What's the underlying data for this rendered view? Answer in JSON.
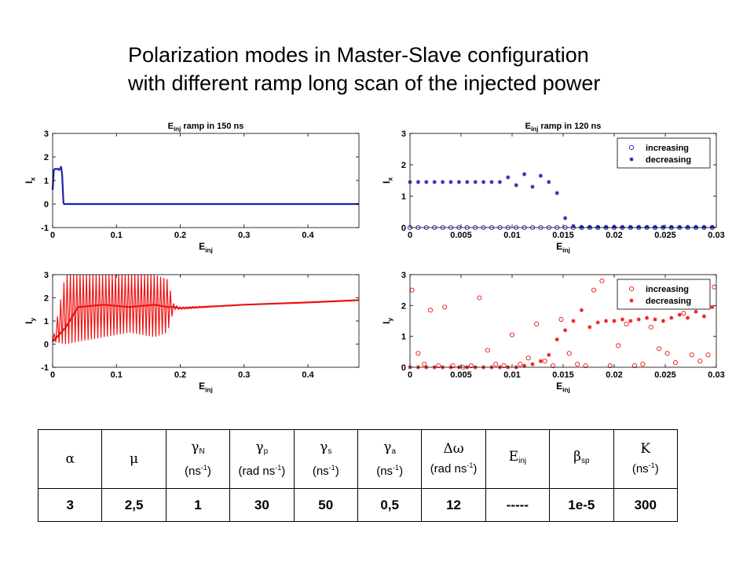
{
  "title_lines": [
    "Polarization modes in Master-Slave configuration",
    "with different ramp long scan of the injected power"
  ],
  "colors": {
    "blue": "#1f1fb4",
    "red": "#ee1111"
  },
  "chart_data": [
    {
      "type": "line",
      "title": "E_inj ramp in 150 ns",
      "xlabel": "E_inj",
      "ylabel": "I_x",
      "xlim": [
        0,
        0.48
      ],
      "ylim": [
        -1,
        3
      ],
      "xticks": [
        0,
        0.1,
        0.2,
        0.3,
        0.4
      ],
      "xtick_labels": [
        "0",
        "0.1",
        "0.2",
        "0.3",
        "0.4"
      ],
      "yticks": [
        -1,
        0,
        1,
        2,
        3
      ],
      "ytick_labels": [
        "-1",
        "0",
        "1",
        "2",
        "3"
      ],
      "series": [
        {
          "color": "#1f1fb4",
          "x": [
            0,
            0.002,
            0.004,
            0.006,
            0.008,
            0.01,
            0.012,
            0.013,
            0.014,
            0.015,
            0.016,
            0.017,
            0.018,
            0.1,
            0.2,
            0.3,
            0.4,
            0.48
          ],
          "y": [
            0.6,
            1.45,
            1.5,
            1.48,
            1.5,
            1.45,
            1.5,
            1.6,
            1.45,
            1.2,
            0.6,
            0.05,
            0,
            0,
            0,
            0,
            0,
            0
          ]
        }
      ]
    },
    {
      "type": "scatter",
      "title": "E_inj ramp in 120 ns",
      "xlabel": "E_inj",
      "ylabel": "I_x",
      "xlim": [
        0,
        0.03
      ],
      "ylim": [
        0,
        3
      ],
      "xticks": [
        0,
        0.005,
        0.01,
        0.015,
        0.02,
        0.025,
        0.03
      ],
      "xtick_labels": [
        "0",
        "0.005",
        "0.01",
        "0.015",
        "0.02",
        "0.025",
        "0.03"
      ],
      "yticks": [
        0,
        1,
        2,
        3
      ],
      "ytick_labels": [
        "0",
        "1",
        "2",
        "3"
      ],
      "legend": "top-right",
      "series": [
        {
          "name": "increasing",
          "marker": "circle",
          "color": "#1f1fb4",
          "x": [
            0,
            0.0008,
            0.0016,
            0.0024,
            0.0032,
            0.004,
            0.0048,
            0.0056,
            0.0064,
            0.0072,
            0.008,
            0.0088,
            0.0096,
            0.0104,
            0.0112,
            0.012,
            0.0128,
            0.0136,
            0.0144,
            0.0152,
            0.016,
            0.0168,
            0.0176,
            0.0184,
            0.0192,
            0.02,
            0.0208,
            0.0216,
            0.0224,
            0.0232,
            0.024,
            0.0248,
            0.0256,
            0.0264,
            0.0272,
            0.028,
            0.0288,
            0.0296
          ],
          "y": [
            0,
            0,
            0,
            0,
            0,
            0,
            0,
            0,
            0,
            0,
            0,
            0,
            0,
            0,
            0,
            0,
            0,
            0,
            0,
            0,
            0,
            0,
            0,
            0,
            0,
            0,
            0,
            0,
            0,
            0,
            0,
            0,
            0,
            0,
            0,
            0,
            0,
            0
          ]
        },
        {
          "name": "decreasing",
          "marker": "star",
          "color": "#1f1fb4",
          "x": [
            0,
            0.0008,
            0.0016,
            0.0024,
            0.0032,
            0.004,
            0.0048,
            0.0056,
            0.0064,
            0.0072,
            0.008,
            0.0088,
            0.0096,
            0.0104,
            0.0112,
            0.012,
            0.0128,
            0.0136,
            0.0144,
            0.0152,
            0.016,
            0.0168,
            0.0176,
            0.0184,
            0.0192,
            0.02,
            0.0208,
            0.0216,
            0.0224,
            0.0232,
            0.024,
            0.0248,
            0.0256,
            0.0264,
            0.0272,
            0.028,
            0.0288,
            0.0296
          ],
          "y": [
            1.45,
            1.45,
            1.45,
            1.45,
            1.45,
            1.45,
            1.45,
            1.45,
            1.45,
            1.45,
            1.45,
            1.45,
            1.6,
            1.35,
            1.7,
            1.3,
            1.65,
            1.45,
            1.1,
            0.3,
            0.05,
            0.02,
            0.02,
            0.02,
            0.02,
            0.02,
            0.02,
            0.02,
            0.02,
            0.02,
            0.02,
            0.02,
            0.02,
            0.02,
            0.02,
            0.02,
            0.02,
            0.02
          ]
        }
      ]
    },
    {
      "type": "line",
      "xlabel": "E_inj",
      "ylabel": "I_y",
      "xlim": [
        0,
        0.48
      ],
      "ylim": [
        -1,
        3
      ],
      "xticks": [
        0,
        0.1,
        0.2,
        0.3,
        0.4
      ],
      "xtick_labels": [
        "0",
        "0.1",
        "0.2",
        "0.3",
        "0.4"
      ],
      "yticks": [
        -1,
        0,
        1,
        2,
        3
      ],
      "ytick_labels": [
        "-1",
        "0",
        "1",
        "2",
        "3"
      ],
      "series": [
        {
          "color": "#ee1111",
          "x": [
            0,
            0.02,
            0.04,
            0.08,
            0.12,
            0.16,
            0.18,
            0.19,
            0.2,
            0.3,
            0.4,
            0.48
          ],
          "y": [
            0.1,
            0.7,
            1.6,
            1.7,
            1.6,
            1.7,
            1.6,
            1.6,
            1.55,
            1.7,
            1.8,
            1.9
          ],
          "envelope_low": [
            0.1,
            0.0,
            0.1,
            0.3,
            0.5,
            0.3,
            0.5,
            1.5,
            1.5,
            1.7,
            1.8,
            1.9
          ],
          "envelope_high": [
            0.1,
            3.0,
            3.0,
            3.0,
            3.0,
            3.0,
            2.8,
            1.7,
            1.6,
            1.7,
            1.8,
            1.9
          ]
        }
      ]
    },
    {
      "type": "scatter",
      "xlabel": "E_inj",
      "ylabel": "I_y",
      "xlim": [
        0,
        0.03
      ],
      "ylim": [
        0,
        3
      ],
      "xticks": [
        0,
        0.005,
        0.01,
        0.015,
        0.02,
        0.025,
        0.03
      ],
      "xtick_labels": [
        "0",
        "0.005",
        "0.01",
        "0.015",
        "0.02",
        "0.025",
        "0.03"
      ],
      "yticks": [
        0,
        1,
        2,
        3
      ],
      "ytick_labels": [
        "0",
        "1",
        "2",
        "3"
      ],
      "legend": "top-right",
      "series": [
        {
          "name": "increasing",
          "marker": "circle",
          "color": "#ee1111",
          "x": [
            0.0002,
            0.0008,
            0.0014,
            0.002,
            0.0028,
            0.0034,
            0.0042,
            0.0052,
            0.006,
            0.0068,
            0.0076,
            0.0084,
            0.0092,
            0.01,
            0.0108,
            0.0116,
            0.0124,
            0.0132,
            0.014,
            0.0148,
            0.0156,
            0.0164,
            0.0172,
            0.018,
            0.0188,
            0.0196,
            0.0204,
            0.0212,
            0.022,
            0.0228,
            0.0236,
            0.0244,
            0.0252,
            0.026,
            0.0268,
            0.0276,
            0.0284,
            0.0292,
            0.0298
          ],
          "y": [
            2.5,
            0.45,
            0.1,
            1.85,
            0.05,
            1.95,
            0.05,
            0.0,
            0.05,
            2.25,
            0.55,
            0.1,
            0.05,
            1.05,
            0.1,
            0.3,
            1.4,
            0.2,
            0.05,
            1.55,
            0.45,
            0.1,
            0.05,
            2.5,
            2.8,
            0.05,
            0.7,
            1.4,
            0.05,
            0.1,
            1.3,
            0.6,
            0.45,
            0.15,
            1.75,
            0.4,
            0.2,
            0.4,
            2.6
          ]
        },
        {
          "name": "decreasing",
          "marker": "star",
          "color": "#ee1111",
          "x": [
            0,
            0.0008,
            0.0016,
            0.0024,
            0.0032,
            0.004,
            0.0048,
            0.0056,
            0.0064,
            0.0072,
            0.008,
            0.0088,
            0.0096,
            0.0104,
            0.0112,
            0.012,
            0.0128,
            0.0136,
            0.0144,
            0.0152,
            0.016,
            0.0168,
            0.0176,
            0.0184,
            0.0192,
            0.02,
            0.0208,
            0.0216,
            0.0224,
            0.0232,
            0.024,
            0.0248,
            0.0256,
            0.0264,
            0.0272,
            0.028,
            0.0288,
            0.0296
          ],
          "y": [
            0,
            0,
            0,
            0,
            0,
            0,
            0,
            0,
            0,
            0,
            0,
            0,
            0,
            0,
            0.05,
            0.1,
            0.2,
            0.4,
            0.9,
            1.2,
            1.5,
            1.85,
            1.3,
            1.45,
            1.5,
            1.5,
            1.55,
            1.5,
            1.55,
            1.6,
            1.55,
            1.5,
            1.6,
            1.7,
            1.6,
            1.8,
            1.65,
            1.95
          ]
        }
      ]
    }
  ],
  "table": {
    "headers": [
      {
        "sym": "α",
        "unit": ""
      },
      {
        "sym": "μ",
        "unit": ""
      },
      {
        "sym": "γ",
        "sub": "N",
        "unit": "(ns",
        "sup": "-1",
        "close": ")"
      },
      {
        "sym": "γ",
        "sub": "p",
        "unit": "(rad ns",
        "sup": "-1",
        "close": ")"
      },
      {
        "sym": "γ",
        "sub": "s",
        "unit": "(ns",
        "sup": "-1",
        "close": ")"
      },
      {
        "sym": "γ",
        "sub": "a",
        "unit": "(ns",
        "sup": "-1",
        "close": ")"
      },
      {
        "sym": "Δω",
        "unit": "(rad ns",
        "sup": "-1",
        "close": ")"
      },
      {
        "sym": "E",
        "sub": "inj",
        "unit": ""
      },
      {
        "sym": "β",
        "sub": "sp",
        "unit": ""
      },
      {
        "sym": "K",
        "unit": "(ns",
        "sup": "-1",
        "close": ")"
      }
    ],
    "values": [
      "3",
      "2,5",
      "1",
      "30",
      "50",
      "0,5",
      "12",
      "-----",
      "1e-5",
      "300"
    ]
  }
}
